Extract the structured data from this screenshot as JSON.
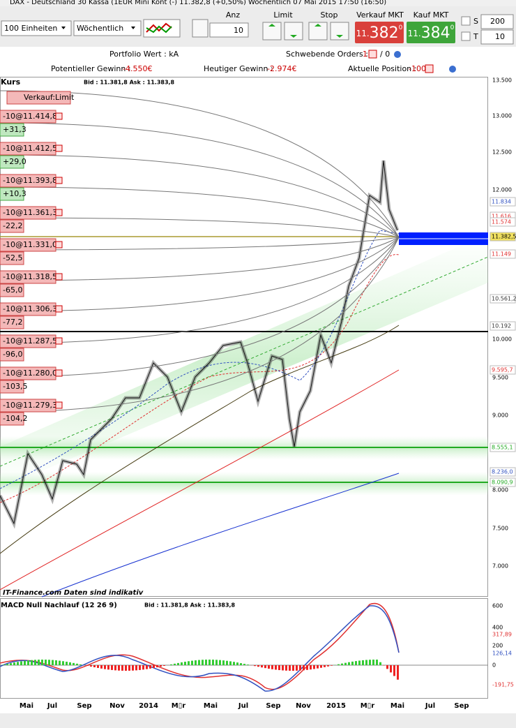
{
  "title_bar": "DAX - Deutschland 30 Kassa (1EUR Mini Kont (-)    11.382,8 (+0,50%)    Wöchentlich   07 Mai 2015 17:50 (16:50)",
  "toolbar": {
    "units": "100 Einheiten",
    "period": "Wöchentlich",
    "qty_label": "Anz",
    "qty": "10",
    "limit_label": "Limit",
    "stop_label": "Stop",
    "sell_label": "Verkauf MKT",
    "sell": {
      "prefix": "11.",
      "main": "382",
      "fraction": "0"
    },
    "buy_label": "Kauf MKT",
    "buy": {
      "prefix": "11.",
      "main": "384",
      "fraction": "0"
    },
    "s_label": "S",
    "s_value": "200",
    "t_label": "T",
    "t_value": "10"
  },
  "info": {
    "portfolio": "Portfolio Wert : kA",
    "pending_label": "Schwebende Orders :",
    "pending_a": "1",
    "pending_b": "/ 0",
    "potential_label": "Potentieller Gewinn :",
    "potential": "-4.550€",
    "today_label": "Heutiger Gewinn :",
    "today": "-2.974€",
    "position_label": "Aktuelle Position :",
    "position": "-100"
  },
  "chart": {
    "header_label": "Kurs",
    "bid_ask": "Bid : 11.381,8 Ask : 11.383,8",
    "order_button": "Verkauf:Limit",
    "orders": [
      {
        "order": "-10@11.414,8",
        "pnl": "+31,3"
      },
      {
        "order": "-10@11.412,5",
        "pnl": "+29,0"
      },
      {
        "order": "-10@11.393,8",
        "pnl": "+10,3"
      },
      {
        "order": "-10@11.361,3",
        "pnl": "-22,2"
      },
      {
        "order": "-10@11.331,0",
        "pnl": "-52,5"
      },
      {
        "order": "-10@11.318,5",
        "pnl": "-65,0"
      },
      {
        "order": "-10@11.306,3",
        "pnl": "-77,2"
      },
      {
        "order": "-10@11.287,5",
        "pnl": "-96,0"
      },
      {
        "order": "-10@11.280,0",
        "pnl": "-103,5"
      },
      {
        "order": "-10@11.279,3",
        "pnl": "-104,2"
      }
    ],
    "price_axis": [
      "13.500",
      "13.000",
      "12.500",
      "12.000",
      "10.000",
      "9.500",
      "9.000",
      "8.000",
      "7.500",
      "7.000"
    ],
    "price_tags": [
      "11.834",
      "11.616",
      "11.574",
      "11.382,5",
      "11.149",
      "10.561,2",
      "10.192",
      "9.595,7",
      "8.555,1",
      "8.236,0",
      "8.090,9"
    ],
    "footer": "IT-Finance.com  Daten sind indikativ"
  },
  "macd": {
    "title": "MACD Null Nachlauf (12 26 9)",
    "bid_ask": "Bid : 11.381,8 Ask : 11.383,8",
    "axis": [
      "600",
      "400",
      "317,89",
      "200",
      "126,14",
      "0",
      "-191,75"
    ]
  },
  "x_axis": [
    "Mai",
    "Jul",
    "Sep",
    "Nov",
    "2014",
    "M▯r",
    "Mai",
    "Jul",
    "Sep",
    "Nov",
    "2015",
    "M▯r",
    "Mai",
    "Jul",
    "Sep"
  ]
}
